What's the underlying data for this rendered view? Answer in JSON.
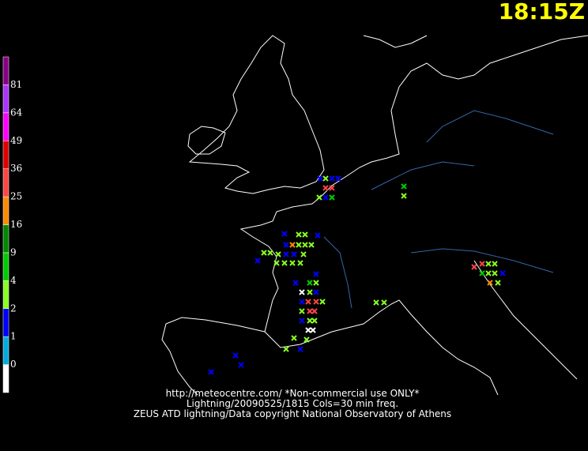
{
  "time_label": "18:15Z",
  "scale": {
    "ticks": [
      0,
      1,
      2,
      4,
      9,
      16,
      25,
      36,
      49,
      64,
      81
    ],
    "colors": [
      "#ffffff",
      "#00aadd",
      "#0000ff",
      "#88ff22",
      "#00cc00",
      "#008800",
      "#ff8800",
      "#ff4444",
      "#dd0000",
      "#ff00ff",
      "#aa33ff",
      "#880088"
    ]
  },
  "footer": [
    "http://meteocentre.com/ *Non-commercial use ONLY*",
    "Lightning/20090525/1815 Cols=30 min freq.",
    "ZEUS ATD lightning/Data copyright National Observatory of Athens"
  ]
}
